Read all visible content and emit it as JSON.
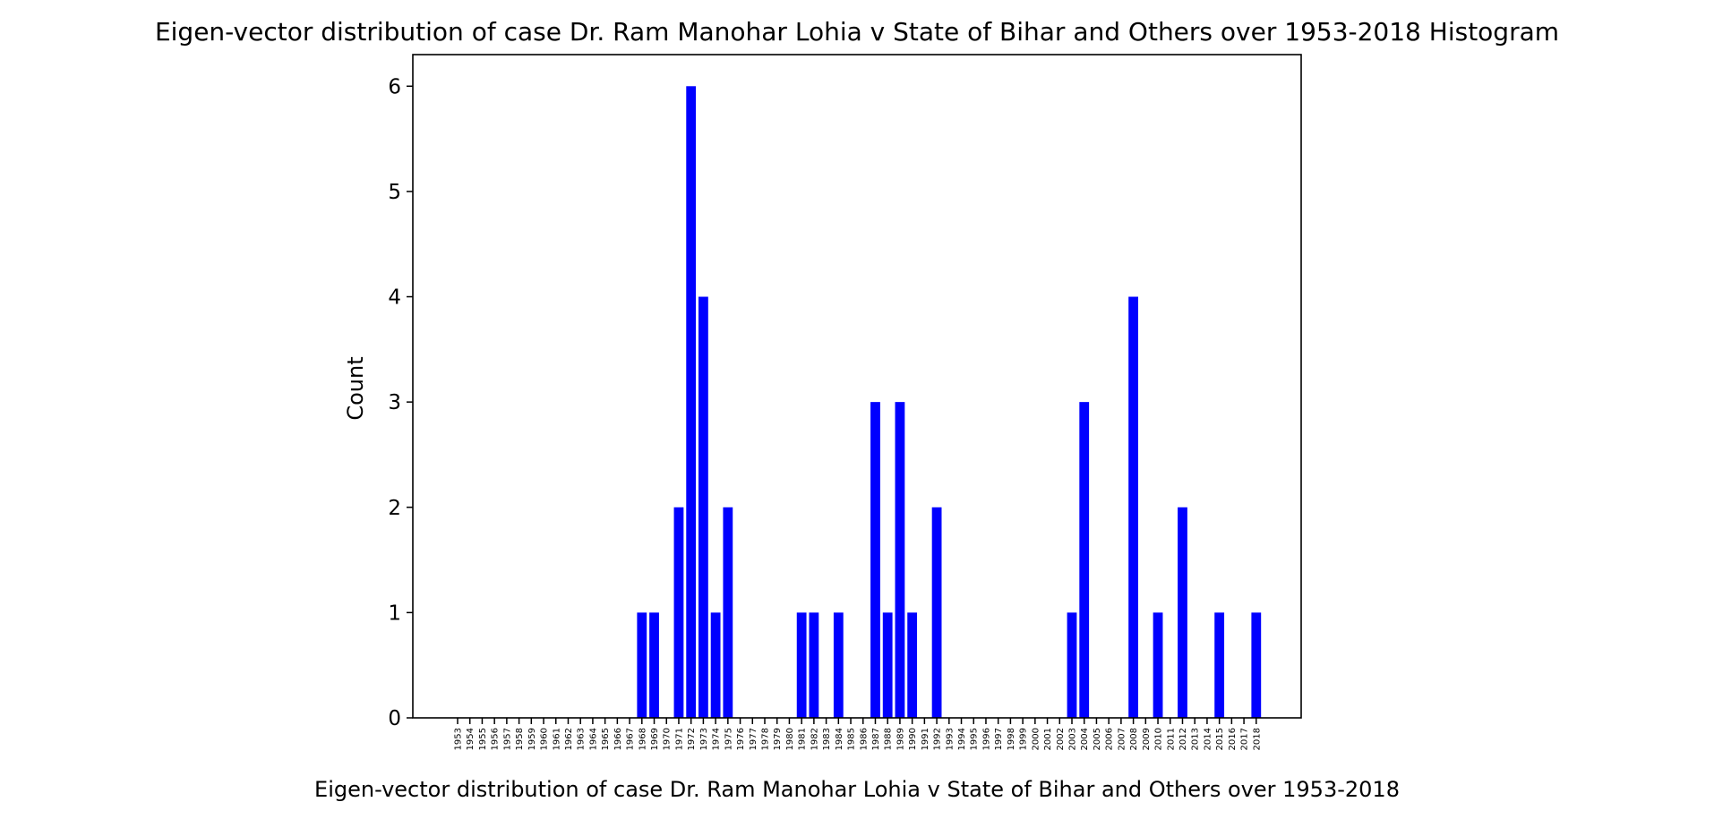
{
  "chart_data": {
    "type": "bar",
    "title": "Eigen-vector distribution of case Dr. Ram Manohar Lohia v State of Bihar and Others over 1953-2018 Histogram",
    "xlabel": "Eigen-vector distribution of case Dr. Ram Manohar Lohia v State of Bihar and Others over 1953-2018",
    "ylabel": "Count",
    "ylim": [
      0,
      6.3
    ],
    "yticks": [
      0,
      1,
      2,
      3,
      4,
      5,
      6
    ],
    "grid": false,
    "bar_color": "#0000ff",
    "categories": [
      "1953",
      "1954",
      "1955",
      "1956",
      "1957",
      "1958",
      "1959",
      "1960",
      "1961",
      "1962",
      "1963",
      "1964",
      "1965",
      "1966",
      "1967",
      "1968",
      "1969",
      "1970",
      "1971",
      "1972",
      "1973",
      "1974",
      "1975",
      "1976",
      "1977",
      "1978",
      "1979",
      "1980",
      "1981",
      "1982",
      "1983",
      "1984",
      "1985",
      "1986",
      "1987",
      "1988",
      "1989",
      "1990",
      "1991",
      "1992",
      "1993",
      "1994",
      "1995",
      "1996",
      "1997",
      "1998",
      "1999",
      "2000",
      "2001",
      "2002",
      "2003",
      "2004",
      "2005",
      "2006",
      "2007",
      "2008",
      "2009",
      "2010",
      "2011",
      "2012",
      "2013",
      "2014",
      "2015",
      "2016",
      "2017",
      "2018"
    ],
    "values": [
      0,
      0,
      0,
      0,
      0,
      0,
      0,
      0,
      0,
      0,
      0,
      0,
      0,
      0,
      0,
      1,
      1,
      0,
      2,
      6,
      4,
      1,
      2,
      0,
      0,
      0,
      0,
      0,
      1,
      1,
      0,
      1,
      0,
      0,
      3,
      1,
      3,
      1,
      0,
      2,
      0,
      0,
      0,
      0,
      0,
      0,
      0,
      0,
      0,
      0,
      1,
      3,
      0,
      0,
      0,
      4,
      0,
      1,
      0,
      2,
      0,
      0,
      1,
      0,
      0,
      1
    ]
  }
}
